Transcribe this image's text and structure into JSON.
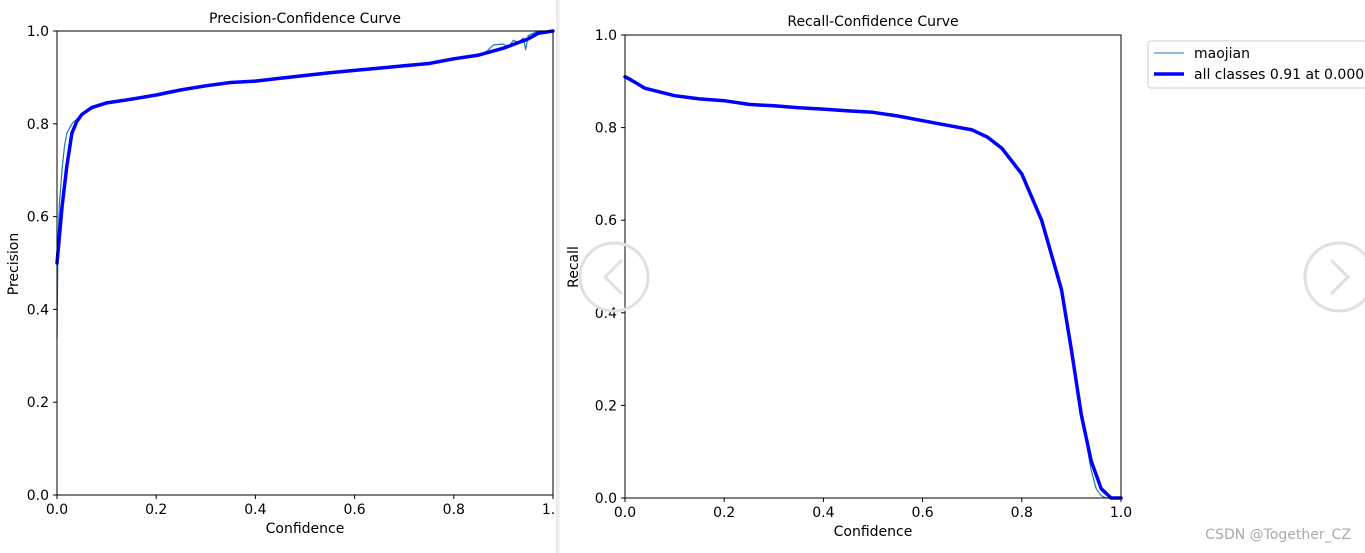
{
  "colors": {
    "class_line": "#1f77b4",
    "all_classes_line": "#0000ff",
    "axis": "#000000",
    "nav_arrow": "#e0e0e0",
    "watermark": "#aaaaaa"
  },
  "chart_data": [
    {
      "type": "line",
      "title": "Precision-Confidence Curve",
      "xlabel": "Confidence",
      "ylabel": "Precision",
      "xlim": [
        0,
        1
      ],
      "ylim": [
        0,
        1
      ],
      "xticks": [
        "0.0",
        "0.2",
        "0.4",
        "0.6",
        "0.8",
        "1.0"
      ],
      "yticks": [
        "0.0",
        "0.2",
        "0.4",
        "0.6",
        "0.8",
        "1.0"
      ],
      "grid": false,
      "legend": null,
      "series": [
        {
          "name": "maojian",
          "x": [
            0.0,
            0.002,
            0.005,
            0.01,
            0.015,
            0.02,
            0.03,
            0.04,
            0.05,
            0.07,
            0.1,
            0.15,
            0.2,
            0.25,
            0.3,
            0.35,
            0.4,
            0.45,
            0.5,
            0.55,
            0.6,
            0.65,
            0.7,
            0.75,
            0.8,
            0.83,
            0.86,
            0.88,
            0.9,
            0.91,
            0.92,
            0.93,
            0.94,
            0.945,
            0.95,
            0.96,
            0.97,
            0.98,
            1.0
          ],
          "y": [
            0.34,
            0.55,
            0.63,
            0.7,
            0.75,
            0.78,
            0.8,
            0.81,
            0.82,
            0.835,
            0.845,
            0.855,
            0.862,
            0.873,
            0.882,
            0.889,
            0.892,
            0.898,
            0.904,
            0.91,
            0.915,
            0.92,
            0.925,
            0.93,
            0.94,
            0.945,
            0.95,
            0.97,
            0.972,
            0.965,
            0.98,
            0.975,
            0.985,
            0.96,
            0.99,
            0.995,
            1.0,
            1.0,
            1.0
          ]
        },
        {
          "name": "all classes",
          "x": [
            0.0,
            0.005,
            0.01,
            0.02,
            0.03,
            0.04,
            0.05,
            0.07,
            0.1,
            0.15,
            0.2,
            0.25,
            0.3,
            0.35,
            0.4,
            0.45,
            0.5,
            0.55,
            0.6,
            0.65,
            0.7,
            0.75,
            0.8,
            0.85,
            0.9,
            0.95,
            0.97,
            1.0
          ],
          "y": [
            0.5,
            0.56,
            0.62,
            0.71,
            0.78,
            0.805,
            0.82,
            0.835,
            0.845,
            0.853,
            0.862,
            0.873,
            0.882,
            0.889,
            0.892,
            0.898,
            0.904,
            0.91,
            0.915,
            0.92,
            0.925,
            0.93,
            0.94,
            0.948,
            0.963,
            0.983,
            0.995,
            1.0
          ]
        }
      ]
    },
    {
      "type": "line",
      "title": "Recall-Confidence Curve",
      "xlabel": "Confidence",
      "ylabel": "Recall",
      "xlim": [
        0,
        1
      ],
      "ylim": [
        0,
        1
      ],
      "xticks": [
        "0.0",
        "0.2",
        "0.4",
        "0.6",
        "0.8",
        "1.0"
      ],
      "yticks": [
        "0.0",
        "0.2",
        "0.4",
        "0.6",
        "0.8",
        "1.0"
      ],
      "grid": false,
      "legend": {
        "placement": "outside-top-right",
        "entries": [
          "maojian",
          "all classes 0.91 at 0.000"
        ]
      },
      "series": [
        {
          "name": "maojian",
          "x": [
            0.0,
            0.02,
            0.04,
            0.07,
            0.1,
            0.15,
            0.2,
            0.25,
            0.3,
            0.35,
            0.4,
            0.45,
            0.5,
            0.55,
            0.6,
            0.65,
            0.7,
            0.73,
            0.76,
            0.8,
            0.84,
            0.88,
            0.9,
            0.92,
            0.94,
            0.95,
            0.96,
            0.97,
            0.98,
            1.0
          ],
          "y": [
            0.91,
            0.898,
            0.885,
            0.877,
            0.869,
            0.862,
            0.858,
            0.85,
            0.847,
            0.843,
            0.84,
            0.836,
            0.833,
            0.825,
            0.815,
            0.805,
            0.795,
            0.78,
            0.755,
            0.7,
            0.6,
            0.45,
            0.32,
            0.18,
            0.06,
            0.02,
            0.005,
            0.0,
            0.0,
            0.0
          ]
        },
        {
          "name": "all classes",
          "x": [
            0.0,
            0.02,
            0.04,
            0.07,
            0.1,
            0.15,
            0.2,
            0.25,
            0.3,
            0.35,
            0.4,
            0.45,
            0.5,
            0.55,
            0.6,
            0.65,
            0.7,
            0.73,
            0.76,
            0.8,
            0.84,
            0.88,
            0.9,
            0.92,
            0.94,
            0.96,
            0.98,
            1.0
          ],
          "y": [
            0.91,
            0.898,
            0.885,
            0.877,
            0.869,
            0.862,
            0.858,
            0.85,
            0.847,
            0.843,
            0.84,
            0.836,
            0.833,
            0.825,
            0.815,
            0.805,
            0.795,
            0.78,
            0.755,
            0.7,
            0.6,
            0.45,
            0.32,
            0.18,
            0.08,
            0.02,
            0.0,
            0.0
          ]
        }
      ]
    }
  ],
  "navigation": {
    "prev_icon": "chevron-left-icon",
    "next_icon": "chevron-right-icon"
  },
  "watermark": "CSDN @Together_CZ"
}
